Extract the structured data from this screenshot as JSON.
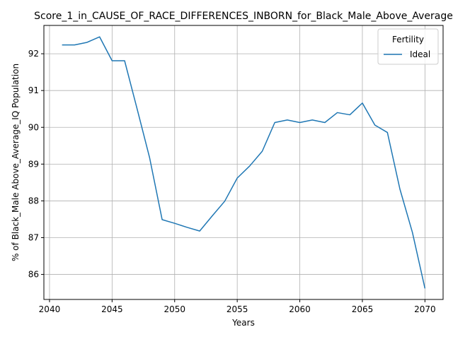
{
  "chart_data": {
    "type": "line",
    "title": "Score_1_in_CAUSE_OF_RACE_DIFFERENCES_INBORN_for_Black_Male_Above_Average",
    "xlabel": "Years",
    "ylabel": "% of Black_Male Above_Average_IQ Population",
    "xlim": [
      2039.55,
      2071.45
    ],
    "ylim": [
      85.32,
      92.77
    ],
    "xticks": [
      2040,
      2045,
      2050,
      2055,
      2060,
      2065,
      2070
    ],
    "yticks": [
      86,
      87,
      88,
      89,
      90,
      91,
      92
    ],
    "grid": true,
    "legend": {
      "title": "Fertility",
      "placement": "top-right"
    },
    "series": [
      {
        "name": "Ideal",
        "color": "#1f77b4",
        "x": [
          2041,
          2042,
          2043,
          2044,
          2045,
          2046,
          2047,
          2048,
          2049,
          2050,
          2051,
          2052,
          2053,
          2054,
          2055,
          2056,
          2057,
          2058,
          2059,
          2060,
          2061,
          2062,
          2063,
          2064,
          2065,
          2066,
          2067,
          2068,
          2069,
          2070
        ],
        "y": [
          92.24,
          92.24,
          92.31,
          92.46,
          91.81,
          91.81,
          90.5,
          89.17,
          87.49,
          87.39,
          87.28,
          87.18,
          87.59,
          87.99,
          88.62,
          88.95,
          89.35,
          90.13,
          90.2,
          90.13,
          90.2,
          90.13,
          90.4,
          90.34,
          90.66,
          90.06,
          89.86,
          88.32,
          87.14,
          85.62
        ]
      }
    ]
  }
}
